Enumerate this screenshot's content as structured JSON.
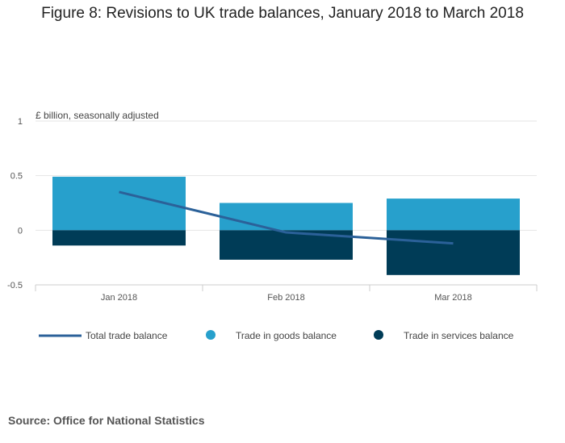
{
  "chart_data": {
    "type": "bar",
    "title": "Figure 8: Revisions to UK trade balances, January 2018 to March 2018",
    "ylabel": "£ billion, seasonally adjusted",
    "categories": [
      "Jan 2018",
      "Feb 2018",
      "Mar 2018"
    ],
    "ylim": [
      -0.5,
      1
    ],
    "yticks": [
      "1",
      "0.5",
      "0",
      "-0.5"
    ],
    "ytick_values": [
      1,
      0.5,
      0,
      -0.5
    ],
    "stacked": true,
    "grid": true,
    "legend_position": "bottom",
    "series": [
      {
        "name": "Total trade balance",
        "kind": "line",
        "color": "#2b6199",
        "values": [
          0.35,
          -0.02,
          -0.12
        ]
      },
      {
        "name": "Trade in goods balance",
        "kind": "bar",
        "color": "#27a0cc",
        "values": [
          0.49,
          0.25,
          0.29
        ]
      },
      {
        "name": "Trade in services balance",
        "kind": "bar",
        "color": "#003c57",
        "values": [
          -0.14,
          -0.27,
          -0.41
        ]
      }
    ]
  },
  "footer": {
    "source": "Source: Office for National Statistics"
  }
}
